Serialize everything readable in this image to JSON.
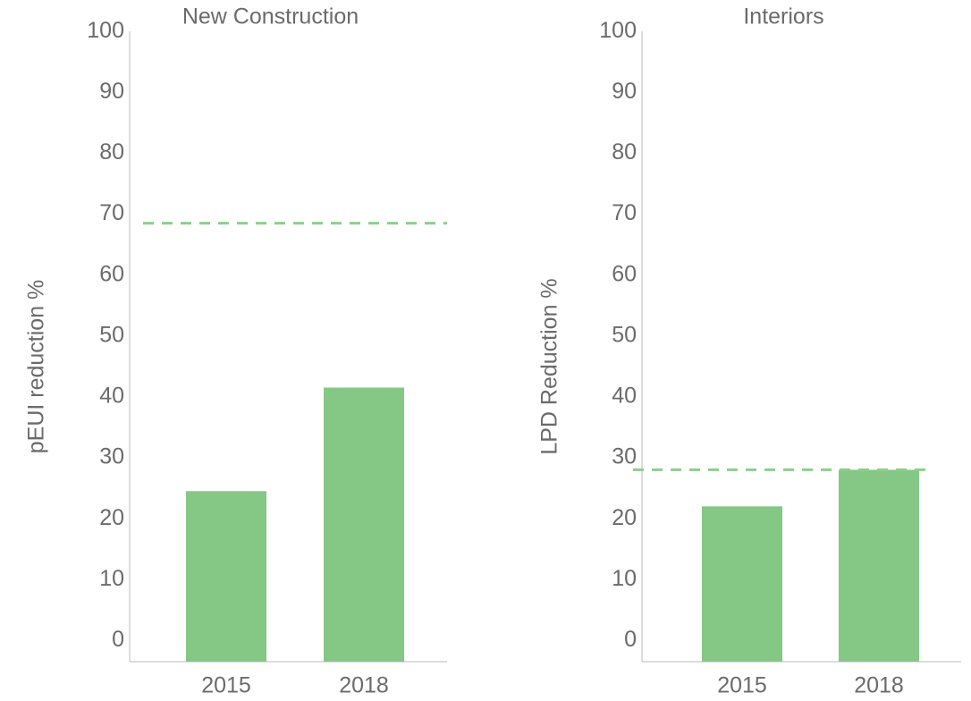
{
  "chart_data": [
    {
      "type": "bar",
      "title": "New Construction",
      "ylabel": "pEUI reduction %",
      "categories": [
        "2015",
        "2018"
      ],
      "values": [
        26,
        43
      ],
      "color": "#85c785",
      "reference_line": 70,
      "reference_color": "#8ccf8c",
      "ylim": [
        -2,
        101.5
      ],
      "yticks": [
        0,
        10,
        20,
        30,
        40,
        50,
        60,
        70,
        80,
        90,
        100
      ]
    },
    {
      "type": "bar",
      "title": "Interiors",
      "ylabel": "LPD Reduction %",
      "categories": [
        "2015",
        "2018"
      ],
      "values": [
        23.5,
        29.5
      ],
      "color": "#85c785",
      "reference_line": 29.5,
      "reference_color": "#8ccf8c",
      "ylim": [
        -2,
        101.5
      ],
      "yticks": [
        0,
        10,
        20,
        30,
        40,
        50,
        60,
        70,
        80,
        90,
        100
      ]
    }
  ]
}
